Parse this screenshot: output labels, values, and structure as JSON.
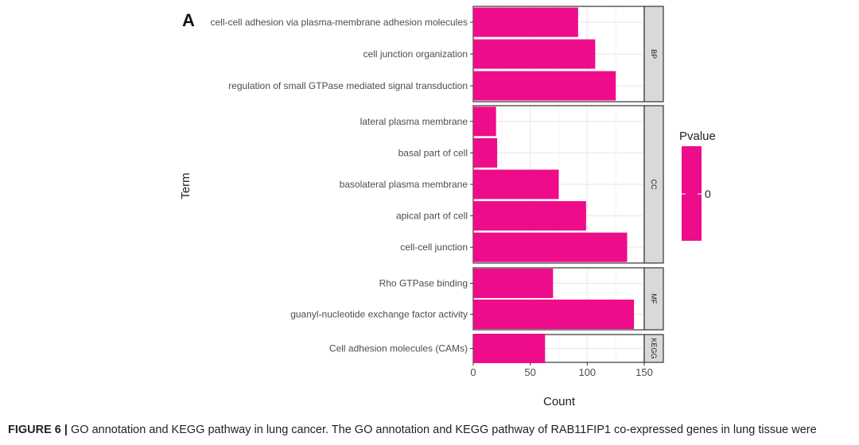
{
  "panel_letter": "A",
  "legend": {
    "title": "Pvalue",
    "label": "0",
    "color": "#ee0c8a"
  },
  "chart_data": {
    "type": "bar",
    "orientation": "horizontal",
    "xlabel": "Count",
    "ylabel": "Term",
    "xlim": [
      0,
      150
    ],
    "xticks": [
      0,
      50,
      100,
      150
    ],
    "grid": true,
    "bar_color": "#ee0c8a",
    "facets": [
      {
        "name": "BP",
        "terms": [
          {
            "term": "cell-cell adhesion via plasma-membrane adhesion molecules",
            "count": 92
          },
          {
            "term": "cell junction organization",
            "count": 107
          },
          {
            "term": "regulation of small GTPase mediated signal transduction",
            "count": 125
          }
        ]
      },
      {
        "name": "CC",
        "terms": [
          {
            "term": "lateral plasma membrane",
            "count": 20
          },
          {
            "term": "basal part of cell",
            "count": 21
          },
          {
            "term": "basolateral plasma membrane",
            "count": 75
          },
          {
            "term": "apical part of cell",
            "count": 99
          },
          {
            "term": "cell-cell junction",
            "count": 135
          }
        ]
      },
      {
        "name": "MF",
        "terms": [
          {
            "term": "Rho GTPase binding",
            "count": 70
          },
          {
            "term": "guanyl-nucleotide exchange factor activity",
            "count": 141
          }
        ]
      },
      {
        "name": "KEGG",
        "terms": [
          {
            "term": "Cell adhesion molecules (CAMs)",
            "count": 63
          }
        ]
      }
    ]
  },
  "caption": {
    "label": "FIGURE 6 |",
    "text": " GO annotation and KEGG pathway in lung cancer. The GO annotation and KEGG pathway of RAB11FIP1 co-expressed genes in lung tissue were"
  }
}
